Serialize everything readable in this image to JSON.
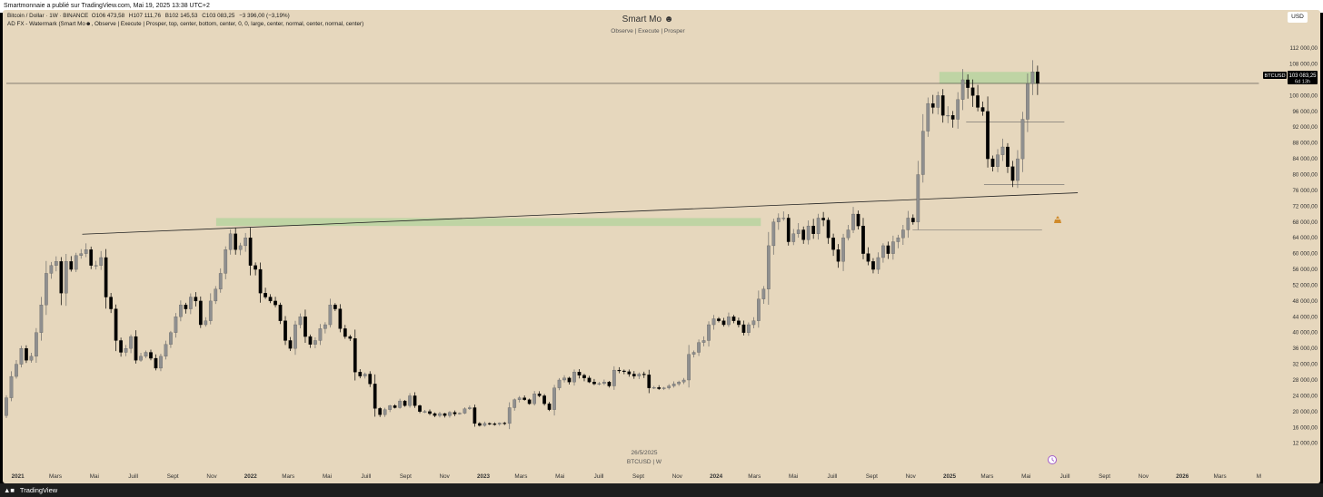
{
  "header": {
    "published_line": "Smartmonnaie a publié sur TradingView.com, Mai 19, 2025 13:38 UTC+2"
  },
  "legend": {
    "line1": "Bitcoin / Dollar · 1W · BINANCE",
    "open": "O106 473,58",
    "high": "H107 111,76",
    "low": "B102 145,53",
    "close": "C103 083,25",
    "change": "−3 396,00 (−3,19%)",
    "line2_prefix": "AD FX - Watermark (Smart Mo",
    "line2_suffix": ", Observe |  Execute |  Prosper, top, center, bottom, center, 0, 0, large, center, normal, center, normal, center)"
  },
  "watermark": {
    "title": "Smart Mo",
    "subtitle": "Observe |   Execute |   Prosper",
    "date": "26/5/2025",
    "symbol": "BTCUSD | W"
  },
  "currency_button": "USD",
  "price_label": {
    "symbol": "BTCUSD",
    "price": "103 083,25",
    "countdown": "6d 13h"
  },
  "footer": {
    "brand": "TradingView"
  },
  "icons": [
    "smiley-icon",
    "tradingview-logo-icon",
    "sell-signal-icon",
    "clock-marker-icon"
  ],
  "colors": {
    "background": "#e6d7bd",
    "zone": "#b7d3a0",
    "candle_up": "#8f8f8f",
    "candle_down": "#000000",
    "line": "#222222"
  },
  "chart_data": {
    "type": "candlestick",
    "timeframe": "1W",
    "x_start": "2020-12-14",
    "x_end": "2025-05-19",
    "y_range": [
      10000,
      114000
    ],
    "y_tick_labels": [
      "112 000,00",
      "108 000,00",
      "104 000,00",
      "100 000,00",
      "96 000,00",
      "92 000,00",
      "88 000,00",
      "84 000,00",
      "80 000,00",
      "76 000,00",
      "72 000,00",
      "68 000,00",
      "64 000,00",
      "60 000,00",
      "56 000,00",
      "52 000,00",
      "48 000,00",
      "44 000,00",
      "40 000,00",
      "36 000,00",
      "32 000,00",
      "28 000,00",
      "24 000,00",
      "20 000,00",
      "16 000,00",
      "12 000,00"
    ],
    "x_tick_labels": [
      {
        "label": "2021",
        "date": "2021-01-01",
        "bold": true
      },
      {
        "label": "Mars",
        "date": "2021-03-01"
      },
      {
        "label": "Mai",
        "date": "2021-05-01"
      },
      {
        "label": "Juill",
        "date": "2021-07-01"
      },
      {
        "label": "Sept",
        "date": "2021-09-01"
      },
      {
        "label": "Nov",
        "date": "2021-11-01"
      },
      {
        "label": "2022",
        "date": "2022-01-01",
        "bold": true
      },
      {
        "label": "Mars",
        "date": "2022-03-01"
      },
      {
        "label": "Mai",
        "date": "2022-05-01"
      },
      {
        "label": "Juill",
        "date": "2022-07-01"
      },
      {
        "label": "Sept",
        "date": "2022-09-01"
      },
      {
        "label": "Nov",
        "date": "2022-11-01"
      },
      {
        "label": "2023",
        "date": "2023-01-01",
        "bold": true
      },
      {
        "label": "Mars",
        "date": "2023-03-01"
      },
      {
        "label": "Mai",
        "date": "2023-05-01"
      },
      {
        "label": "Juill",
        "date": "2023-07-01"
      },
      {
        "label": "Sept",
        "date": "2023-09-01"
      },
      {
        "label": "Nov",
        "date": "2023-11-01"
      },
      {
        "label": "2024",
        "date": "2024-01-01",
        "bold": true
      },
      {
        "label": "Mars",
        "date": "2024-03-01"
      },
      {
        "label": "Mai",
        "date": "2024-05-01"
      },
      {
        "label": "Juill",
        "date": "2024-07-01"
      },
      {
        "label": "Sept",
        "date": "2024-09-01"
      },
      {
        "label": "Nov",
        "date": "2024-11-01"
      },
      {
        "label": "2025",
        "date": "2025-01-01",
        "bold": true
      },
      {
        "label": "Mars",
        "date": "2025-03-01"
      },
      {
        "label": "Mai",
        "date": "2025-05-01"
      },
      {
        "label": "Juill",
        "date": "2025-07-01"
      },
      {
        "label": "Sept",
        "date": "2025-09-01"
      },
      {
        "label": "Nov",
        "date": "2025-11-01"
      },
      {
        "label": "2026",
        "date": "2026-01-01",
        "bold": true
      },
      {
        "label": "Mars",
        "date": "2026-03-01"
      },
      {
        "label": "M",
        "date": "2026-05-01"
      }
    ],
    "closes": [
      23500,
      28900,
      32000,
      36000,
      33000,
      34000,
      40000,
      47000,
      55000,
      57000,
      58000,
      50000,
      58000,
      56000,
      59500,
      60000,
      61000,
      57000,
      57000,
      59000,
      49000,
      46000,
      38000,
      35000,
      36000,
      39000,
      33000,
      34000,
      35000,
      33500,
      31000,
      34000,
      37000,
      40000,
      44000,
      47000,
      46000,
      49000,
      48000,
      42000,
      43000,
      48000,
      51000,
      55000,
      61000,
      65000,
      61000,
      62000,
      64000,
      57000,
      56000,
      50000,
      49000,
      48000,
      47000,
      43000,
      38000,
      36000,
      42000,
      44000,
      39000,
      37000,
      38000,
      41000,
      42000,
      47000,
      46000,
      41000,
      39000,
      38500,
      30000,
      29000,
      29500,
      27000,
      20800,
      19200,
      20500,
      21500,
      21000,
      22700,
      21500,
      24000,
      21500,
      20000,
      20000,
      19500,
      19000,
      19500,
      19000,
      19800,
      19400,
      19600,
      20700,
      21000,
      17000,
      16500,
      17000,
      16900,
      16800,
      17100,
      17000,
      21000,
      23000,
      23500,
      23000,
      22000,
      24500,
      24000,
      22000,
      20500,
      26000,
      28000,
      28500,
      27500,
      30000,
      29200,
      28500,
      27500,
      27000,
      27100,
      27500,
      26500,
      30500,
      30300,
      30100,
      29500,
      29000,
      29500,
      29300,
      26000,
      26100,
      25800,
      26000,
      26500,
      27000,
      27500,
      28000,
      34500,
      35000,
      37500,
      38000,
      42000,
      43500,
      43000,
      42000,
      44000,
      43000,
      42000,
      40000,
      42000,
      43000,
      48500,
      51000,
      62000,
      68000,
      69000,
      69000,
      63000,
      65000,
      66000,
      63500,
      67000,
      65000,
      69000,
      68500,
      64000,
      61000,
      58000,
      64000,
      66000,
      70000,
      67000,
      60000,
      58000,
      56000,
      59000,
      62000,
      60000,
      63000,
      64000,
      66000,
      69000,
      68000,
      80000,
      91000,
      98000,
      97000,
      100000,
      95000,
      95000,
      94000,
      99000,
      104000,
      102000,
      100000,
      97000,
      96000,
      84000,
      82000,
      85000,
      87000,
      82000,
      78500,
      84000,
      94000,
      103000,
      106000,
      103100
    ],
    "zones": [
      {
        "label": "top-zone",
        "x_from": "2024-12-16",
        "x_to": "2025-05-19",
        "y_from": 103000,
        "y_to": 106000
      },
      {
        "label": "mid-zone",
        "x_from": "2021-11-08",
        "x_to": "2024-03-11",
        "y_from": 67000,
        "y_to": 69000
      }
    ],
    "trendlines": [
      {
        "label": "lower-ascending-line",
        "from": {
          "x": "2021-04-12",
          "y": 64900
        },
        "to": {
          "x": "2025-07-21",
          "y": 75400
        }
      },
      {
        "label": "horizontal-price-line",
        "from": {
          "x": "2020-12-14",
          "y": 103083
        },
        "to": {
          "x": "2026-05-01",
          "y": 103083
        }
      }
    ],
    "levels": [
      {
        "label": "level-93k",
        "x_from": "2025-01-27",
        "x_to": "2025-06-30",
        "y": 93300
      },
      {
        "label": "level-77k",
        "x_from": "2025-02-24",
        "x_to": "2025-06-30",
        "y": 77500
      },
      {
        "label": "level-66k",
        "x_from": "2024-11-04",
        "x_to": "2025-05-26",
        "y": 66000
      }
    ]
  }
}
